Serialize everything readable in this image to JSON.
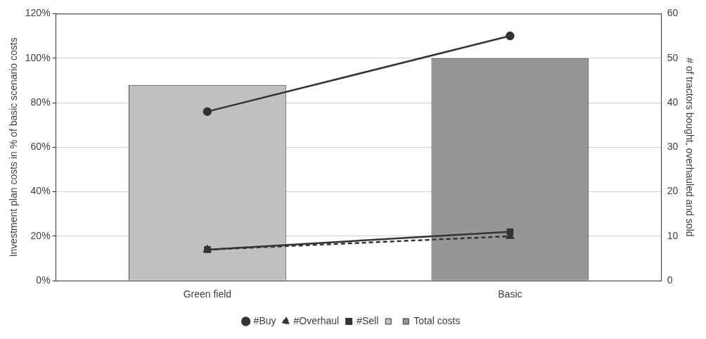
{
  "chart_data": {
    "type": "bar",
    "categories": [
      "Green field",
      "Basic"
    ],
    "ylabel": "Investment plan costs in % of basic scenario costs",
    "y2label": "# of tractors bought, overhauled and sold",
    "ylim": [
      0,
      120
    ],
    "yticks": [
      {
        "value": 0,
        "label": "0%"
      },
      {
        "value": 20,
        "label": "20%"
      },
      {
        "value": 40,
        "label": "40%"
      },
      {
        "value": 60,
        "label": "60%"
      },
      {
        "value": 80,
        "label": "80%"
      },
      {
        "value": 100,
        "label": "100%"
      },
      {
        "value": 120,
        "label": "120%"
      }
    ],
    "y2lim": [
      0,
      60
    ],
    "y2ticks": [
      0,
      10,
      20,
      30,
      40,
      50,
      60
    ],
    "grid": "y",
    "legend": "bottom",
    "series": [
      {
        "name": "#Buy",
        "type": "line",
        "axis": "y2",
        "color": "#333333",
        "marker": "circle",
        "line_style": "solid",
        "values": [
          38,
          55
        ]
      },
      {
        "name": "#Overhaul",
        "type": "line",
        "axis": "y2",
        "color": "#333333",
        "marker": "triangle",
        "line_style": "dashed",
        "values": [
          7,
          10
        ]
      },
      {
        "name": "#Sell",
        "type": "line",
        "axis": "y2",
        "color": "#333333",
        "marker": "square",
        "line_style": "solid",
        "values": [
          7,
          11
        ]
      },
      {
        "name": "Total costs",
        "axis": "y",
        "colors": [
          "#c0c0c0",
          "#969696"
        ],
        "values": [
          88,
          100
        ]
      }
    ]
  }
}
